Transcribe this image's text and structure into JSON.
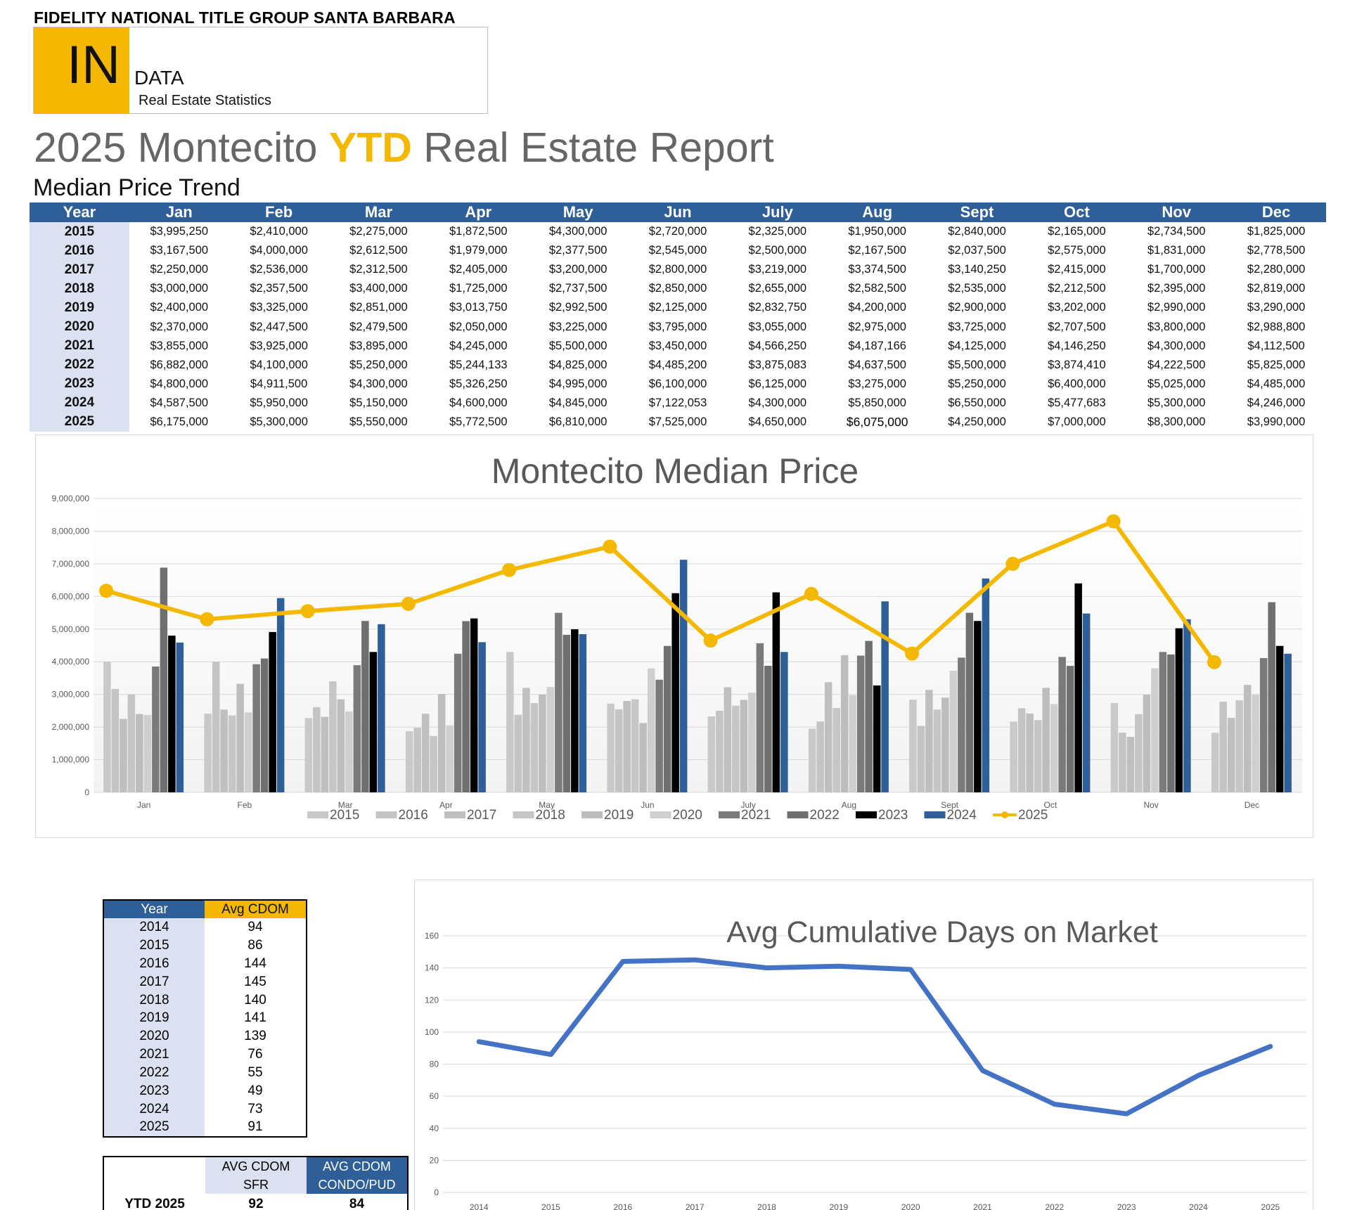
{
  "header": {
    "company": "FIDELITY NATIONAL TITLE GROUP SANTA BARBARA",
    "logo_big": "IN",
    "logo_word": "DATA",
    "logo_sub": "Real Estate Statistics",
    "title_prefix": "2025 Montecito",
    "title_highlight": "YTD",
    "title_suffix": "Real Estate Report",
    "section": "Median Price Trend"
  },
  "colors": {
    "brand_blue": "#2e5f99",
    "brand_yellow": "#f5b800",
    "label_bg": "#dbe1f0",
    "line_blue": "#4472c4"
  },
  "median_table": {
    "headers": [
      "Year",
      "Jan",
      "Feb",
      "Mar",
      "Apr",
      "May",
      "Jun",
      "July",
      "Aug",
      "Sept",
      "Oct",
      "Nov",
      "Dec"
    ],
    "rows": [
      [
        "2015",
        "$3,995,250",
        "$2,410,000",
        "$2,275,000",
        "$1,872,500",
        "$4,300,000",
        "$2,720,000",
        "$2,325,000",
        "$1,950,000",
        "$2,840,000",
        "$2,165,000",
        "$2,734,500",
        "$1,825,000"
      ],
      [
        "2016",
        "$3,167,500",
        "$4,000,000",
        "$2,612,500",
        "$1,979,000",
        "$2,377,500",
        "$2,545,000",
        "$2,500,000",
        "$2,167,500",
        "$2,037,500",
        "$2,575,000",
        "$1,831,000",
        "$2,778,500"
      ],
      [
        "2017",
        "$2,250,000",
        "$2,536,000",
        "$2,312,500",
        "$2,405,000",
        "$3,200,000",
        "$2,800,000",
        "$3,219,000",
        "$3,374,500",
        "$3,140,250",
        "$2,415,000",
        "$1,700,000",
        "$2,280,000"
      ],
      [
        "2018",
        "$3,000,000",
        "$2,357,500",
        "$3,400,000",
        "$1,725,000",
        "$2,737,500",
        "$2,850,000",
        "$2,655,000",
        "$2,582,500",
        "$2,535,000",
        "$2,212,500",
        "$2,395,000",
        "$2,819,000"
      ],
      [
        "2019",
        "$2,400,000",
        "$3,325,000",
        "$2,851,000",
        "$3,013,750",
        "$2,992,500",
        "$2,125,000",
        "$2,832,750",
        "$4,200,000",
        "$2,900,000",
        "$3,202,000",
        "$2,990,000",
        "$3,290,000"
      ],
      [
        "2020",
        "$2,370,000",
        "$2,447,500",
        "$2,479,500",
        "$2,050,000",
        "$3,225,000",
        "$3,795,000",
        "$3,055,000",
        "$2,975,000",
        "$3,725,000",
        "$2,707,500",
        "$3,800,000",
        "$2,988,800"
      ],
      [
        "2021",
        "$3,855,000",
        "$3,925,000",
        "$3,895,000",
        "$4,245,000",
        "$5,500,000",
        "$3,450,000",
        "$4,566,250",
        "$4,187,166",
        "$4,125,000",
        "$4,146,250",
        "$4,300,000",
        "$4,112,500"
      ],
      [
        "2022",
        "$6,882,000",
        "$4,100,000",
        "$5,250,000",
        "$5,244,133",
        "$4,825,000",
        "$4,485,200",
        "$3,875,083",
        "$4,637,500",
        "$5,500,000",
        "$3,874,410",
        "$4,222,500",
        "$5,825,000"
      ],
      [
        "2023",
        "$4,800,000",
        "$4,911,500",
        "$4,300,000",
        "$5,326,250",
        "$4,995,000",
        "$6,100,000",
        "$6,125,000",
        "$3,275,000",
        "$5,250,000",
        "$6,400,000",
        "$5,025,000",
        "$4,485,000"
      ],
      [
        "2024",
        "$4,587,500",
        "$5,950,000",
        "$5,150,000",
        "$4,600,000",
        "$4,845,000",
        "$7,122,053",
        "$4,300,000",
        "$5,850,000",
        "$6,550,000",
        "$5,477,683",
        "$5,300,000",
        "$4,246,000"
      ],
      [
        "2025",
        "$6,175,000",
        "$5,300,000",
        "$5,550,000",
        "$5,772,500",
        "$6,810,000",
        "$7,525,000",
        "$4,650,000",
        "$6,075,000",
        "$4,250,000",
        "$7,000,000",
        "$8,300,000",
        "$3,990,000"
      ]
    ]
  },
  "cdom_table": {
    "headers": [
      "Year",
      "Avg CDOM"
    ],
    "rows": [
      [
        "2014",
        "94"
      ],
      [
        "2015",
        "86"
      ],
      [
        "2016",
        "144"
      ],
      [
        "2017",
        "145"
      ],
      [
        "2018",
        "140"
      ],
      [
        "2019",
        "141"
      ],
      [
        "2020",
        "139"
      ],
      [
        "2021",
        "76"
      ],
      [
        "2022",
        "55"
      ],
      [
        "2023",
        "49"
      ],
      [
        "2024",
        "73"
      ],
      [
        "2025",
        "91"
      ]
    ]
  },
  "ytd_table": {
    "sfr_header_1": "AVG CDOM",
    "sfr_header_2": "SFR",
    "condo_header_1": "AVG CDOM",
    "condo_header_2": "CONDO/PUD",
    "label": "YTD 2025",
    "sfr_value": "92",
    "condo_value": "84"
  },
  "chart_data": [
    {
      "type": "bar",
      "title": "Montecito Median Price",
      "categories": [
        "Jan",
        "Feb",
        "Mar",
        "Apr",
        "May",
        "Jun",
        "July",
        "Aug",
        "Sept",
        "Oct",
        "Nov",
        "Dec"
      ],
      "ylim": [
        0,
        9000000
      ],
      "yticks": [
        "0",
        "1,000,000",
        "2,000,000",
        "3,000,000",
        "4,000,000",
        "5,000,000",
        "6,000,000",
        "7,000,000",
        "8,000,000",
        "9,000,000"
      ],
      "grid": true,
      "legend": "bottom",
      "series": [
        {
          "name": "2015",
          "kind": "bar",
          "color": "#c9c9c9",
          "values": [
            3995250,
            2410000,
            2275000,
            1872500,
            4300000,
            2720000,
            2325000,
            1950000,
            2840000,
            2165000,
            2734500,
            1825000
          ]
        },
        {
          "name": "2016",
          "kind": "bar",
          "color": "#c4c4c4",
          "values": [
            3167500,
            4000000,
            2612500,
            1979000,
            2377500,
            2545000,
            2500000,
            2167500,
            2037500,
            2575000,
            1831000,
            2778500
          ]
        },
        {
          "name": "2017",
          "kind": "bar",
          "color": "#bfbfbf",
          "values": [
            2250000,
            2536000,
            2312500,
            2405000,
            3200000,
            2800000,
            3219000,
            3374500,
            3140250,
            2415000,
            1700000,
            2280000
          ]
        },
        {
          "name": "2018",
          "kind": "bar",
          "color": "#c6c6c6",
          "values": [
            3000000,
            2357500,
            3400000,
            1725000,
            2737500,
            2850000,
            2655000,
            2582500,
            2535000,
            2212500,
            2395000,
            2819000
          ]
        },
        {
          "name": "2019",
          "kind": "bar",
          "color": "#bdbdbd",
          "values": [
            2400000,
            3325000,
            2851000,
            3013750,
            2992500,
            2125000,
            2832750,
            4200000,
            2900000,
            3202000,
            2990000,
            3290000
          ]
        },
        {
          "name": "2020",
          "kind": "bar",
          "color": "#cfcfcf",
          "values": [
            2370000,
            2447500,
            2479500,
            2050000,
            3225000,
            3795000,
            3055000,
            2975000,
            3725000,
            2707500,
            3800000,
            2988800
          ]
        },
        {
          "name": "2021",
          "kind": "bar",
          "color": "#7a7a7a",
          "values": [
            3855000,
            3925000,
            3895000,
            4245000,
            5500000,
            3450000,
            4566250,
            4187166,
            4125000,
            4146250,
            4300000,
            4112500
          ]
        },
        {
          "name": "2022",
          "kind": "bar",
          "color": "#6f6f6f",
          "values": [
            6882000,
            4100000,
            5250000,
            5244133,
            4825000,
            4485200,
            3875083,
            4637500,
            5500000,
            3874410,
            4222500,
            5825000
          ]
        },
        {
          "name": "2023",
          "kind": "bar",
          "color": "#000000",
          "values": [
            4800000,
            4911500,
            4300000,
            5326250,
            4995000,
            6100000,
            6125000,
            3275000,
            5250000,
            6400000,
            5025000,
            4485000
          ]
        },
        {
          "name": "2024",
          "kind": "bar",
          "color": "#2e5f99",
          "values": [
            4587500,
            5950000,
            5150000,
            4600000,
            4845000,
            7122053,
            4300000,
            5850000,
            6550000,
            5477683,
            5300000,
            4246000
          ]
        },
        {
          "name": "2025",
          "kind": "line",
          "color": "#f5b800",
          "values": [
            6175000,
            5300000,
            5550000,
            5772500,
            6810000,
            7525000,
            4650000,
            6075000,
            4250000,
            7000000,
            8300000,
            3990000
          ]
        }
      ]
    },
    {
      "type": "line",
      "title": "Avg Cumulative Days on Market",
      "x": [
        "2014",
        "2015",
        "2016",
        "2017",
        "2018",
        "2019",
        "2020",
        "2021",
        "2022",
        "2023",
        "2024",
        "2025"
      ],
      "values": [
        94,
        86,
        144,
        145,
        140,
        141,
        139,
        76,
        55,
        49,
        73,
        91
      ],
      "ylim": [
        0,
        160
      ],
      "yticks": [
        "0",
        "20",
        "40",
        "60",
        "80",
        "100",
        "120",
        "140",
        "160"
      ],
      "grid": true,
      "color": "#4472c4"
    }
  ]
}
